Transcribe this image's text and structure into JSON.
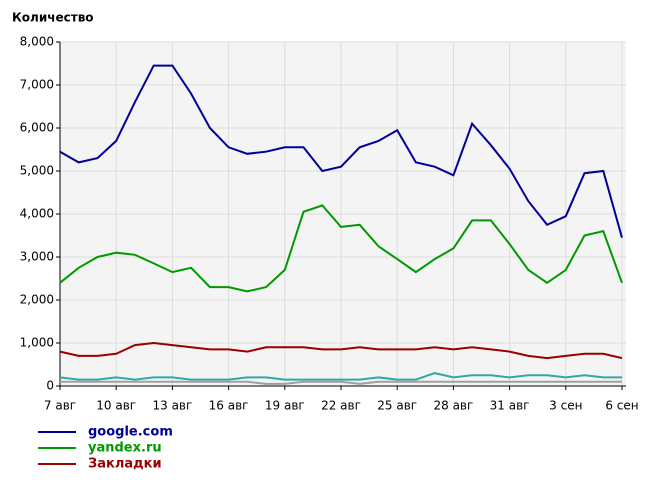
{
  "chart_data": {
    "type": "line",
    "title": "Количество",
    "categories": [
      "7 авг",
      null,
      null,
      "10 авг",
      null,
      null,
      "13 авг",
      null,
      null,
      "16 авг",
      null,
      null,
      "19 авг",
      null,
      null,
      "22 авг",
      null,
      null,
      "25 авг",
      null,
      null,
      "28 авг",
      null,
      null,
      "31 авг",
      null,
      null,
      "3 сен",
      null,
      null,
      "6 сен"
    ],
    "series": [
      {
        "name": "google.com",
        "color": "#000099",
        "values": [
          5450,
          5200,
          5300,
          5700,
          6600,
          7450,
          7450,
          6800,
          6000,
          5550,
          5400,
          5450,
          5550,
          5550,
          5000,
          5100,
          5550,
          5700,
          5950,
          5200,
          5100,
          4900,
          6100,
          5600,
          5050,
          4300,
          3750,
          3950,
          4950,
          5000,
          3450
        ]
      },
      {
        "name": "yandex.ru",
        "color": "#009900",
        "values": [
          2400,
          2750,
          3000,
          3100,
          3050,
          2850,
          2650,
          2750,
          2300,
          2300,
          2200,
          2300,
          2700,
          4050,
          4200,
          3700,
          3750,
          3250,
          2950,
          2650,
          2950,
          3200,
          3850,
          3850,
          3300,
          2700,
          2400,
          2700,
          3500,
          3600,
          2400
        ]
      },
      {
        "name": "Закладки",
        "color": "#990000",
        "values": [
          800,
          700,
          700,
          750,
          950,
          1000,
          950,
          900,
          850,
          850,
          800,
          900,
          900,
          900,
          850,
          850,
          900,
          850,
          850,
          850,
          900,
          850,
          900,
          850,
          800,
          700,
          650,
          700,
          750,
          750,
          650
        ]
      },
      {
        "color": "#33a6a6",
        "values": [
          200,
          150,
          150,
          200,
          150,
          200,
          200,
          150,
          150,
          150,
          200,
          200,
          150,
          150,
          150,
          150,
          150,
          200,
          150,
          150,
          300,
          200,
          250,
          250,
          200,
          250,
          250,
          200,
          250,
          200,
          200
        ]
      },
      {
        "color": "#a0a0a0",
        "values": [
          100,
          100,
          100,
          100,
          100,
          100,
          100,
          100,
          100,
          100,
          100,
          50,
          50,
          100,
          100,
          100,
          50,
          100,
          100,
          100,
          100,
          100,
          100,
          100,
          100,
          100,
          100,
          100,
          100,
          100,
          100
        ]
      }
    ],
    "ylim": [
      0,
      8000
    ],
    "yticks": [
      0,
      {
        "value": 1000,
        "label": "1,000"
      },
      {
        "value": 2000,
        "label": "2,000"
      },
      {
        "value": 3000,
        "label": "3,000"
      },
      {
        "value": 4000,
        "label": "4,000"
      },
      {
        "value": 5000,
        "label": "5,000"
      },
      {
        "value": 6000,
        "label": "6,000"
      },
      {
        "value": 7000,
        "label": "7,000"
      },
      {
        "value": 8000,
        "label": "8,000"
      }
    ],
    "grid": true
  }
}
